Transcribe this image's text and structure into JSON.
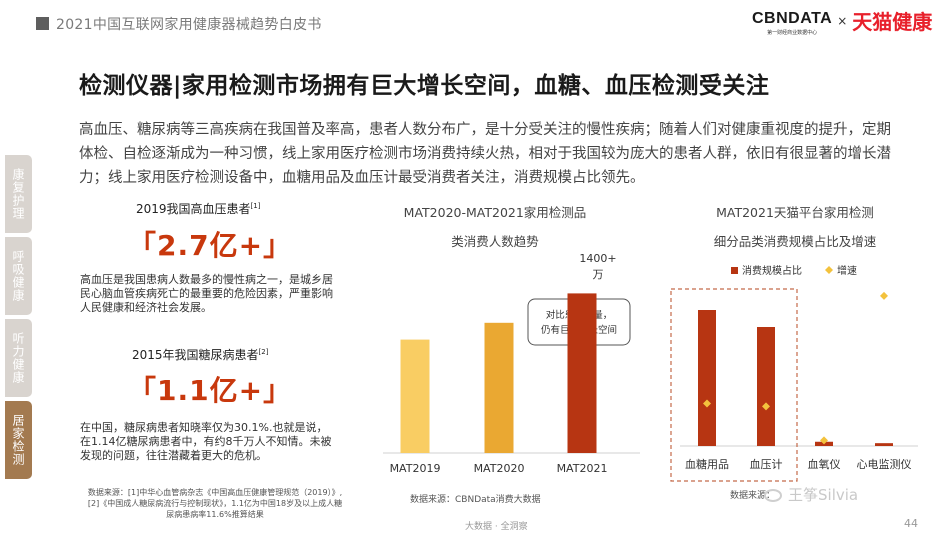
{
  "header": {
    "report_title": "2021中国互联网家用健康器械趋势白皮书",
    "brand_cbn": "CBNDATA",
    "brand_cbn_sub": "第一财经商业数据中心",
    "brand_times": "×",
    "brand_tmall": "天猫健康"
  },
  "page_title": "检测仪器|家用检测市场拥有巨大增长空间，血糖、血压检测受关注",
  "intro": "高血压、糖尿病等三高疾病在我国普及率高，患者人数分布广，是十分受关注的慢性疾病；随着人们对健康重视度的提升，定期体检、自检逐渐成为一种习惯，线上家用医疗检测市场消费持续火热，相对于我国较为庞大的患者人群，依旧有很显著的增长潜力；线上家用医疗检测设备中，血糖用品及血压计最受消费者关注，消费规模占比领先。",
  "side_tabs": [
    "康复护理",
    "呼吸健康",
    "听力健康",
    "居家检测"
  ],
  "stats": [
    {
      "label": "2019我国高血压患者",
      "ref": "[1]",
      "value": "「2.7亿+」",
      "desc": "高血压是我国患病人数最多的慢性病之一，是城乡居民心脑血管疾病死亡的最重要的危险因素，严重影响人民健康和经济社会发展。"
    },
    {
      "label": "2015年我国糖尿病患者",
      "ref": "[2]",
      "value": "「1.1亿+」",
      "desc": "在中国，糖尿病患者知晓率仅为30.1%.也就是说，在1.14亿糖尿病患者中，有约8千万人不知情。未被发现的问题，往往潜藏着更大的危机。"
    }
  ],
  "source_left": "数据来源：[1]中华心血管病杂志《中国高血压健康管理规范（2019）》,[2]《中国成人糖尿病流行与控制现状》，1.1亿为中国18岁及以上成人糖尿病患病率11.6%推算结果",
  "chart1": {
    "title_line1": "MAT2020-MAT2021家用检测品",
    "title_line2": "类消费人数趋势",
    "top_label_line1": "1400+",
    "top_label_line2": "万",
    "callout_line1": "对比患者数量，",
    "callout_line2": "仍有巨大增长空间",
    "source": "数据来源：CBNData消费大数据"
  },
  "chart2": {
    "title_line1": "MAT2021天猫平台家用检测",
    "title_line2": "细分品类消费规模占比及增速",
    "source": "数据来源："
  },
  "chart_data": [
    {
      "type": "bar",
      "categories": [
        "MAT2019",
        "MAT2020",
        "MAT2021"
      ],
      "values": [
        54,
        62,
        76
      ],
      "ylim": [
        0,
        100
      ],
      "colors": [
        "#f9cd63",
        "#eaa832",
        "#b73512"
      ]
    },
    {
      "type": "bar",
      "categories": [
        "血糖用品",
        "血压计",
        "血氧仪",
        "心电监测仪"
      ],
      "series": [
        {
          "name": "消费规模占比",
          "values": [
            48,
            42,
            1.5,
            1
          ],
          "color": "#b73512",
          "mark": "bar"
        },
        {
          "name": "增速",
          "values": [
            15,
            14,
            2,
            53
          ],
          "color": "#f3c23d",
          "mark": "diamond"
        }
      ],
      "ylim": [
        0,
        60
      ],
      "legend_position": "top"
    }
  ],
  "footer": {
    "center": "大数据 · 全洞察",
    "page_number": "44",
    "watermark": "王筝Silvia"
  }
}
